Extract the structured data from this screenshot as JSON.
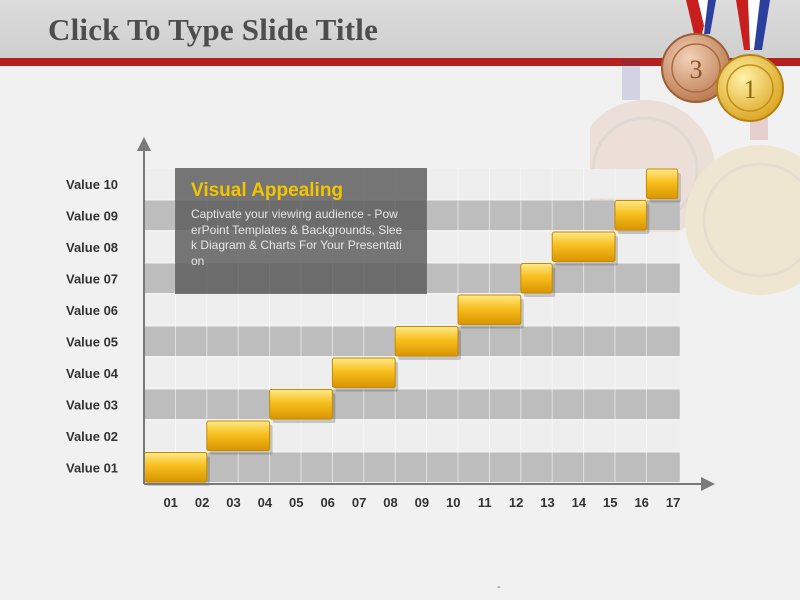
{
  "slide": {
    "title": "Click To Type Slide Title",
    "footnote": "-"
  },
  "textbox": {
    "title": "Visual Appealing",
    "body": "Captivate your viewing audience - PowerPoint Templates & Backgrounds, Sleek Diagram & Charts For Your Presentation"
  },
  "medals": [
    {
      "label": "3",
      "color": "#c8865a"
    },
    {
      "label": "1",
      "color": "#e1b43a"
    }
  ],
  "colors": {
    "accent": "#b3201e",
    "bar": "#f2b21a",
    "band": "#bdbdbd",
    "textbox_title": "#f4c400"
  },
  "chart_data": {
    "type": "bar",
    "orientation": "horizontal-gantt",
    "categories": [
      "Value 01",
      "Value 02",
      "Value 03",
      "Value 04",
      "Value 05",
      "Value 06",
      "Value 07",
      "Value 08",
      "Value 09",
      "Value 10"
    ],
    "x_ticks": [
      "01",
      "02",
      "03",
      "04",
      "05",
      "06",
      "07",
      "08",
      "09",
      "10",
      "11",
      "12",
      "13",
      "14",
      "15",
      "16",
      "17"
    ],
    "tasks": [
      {
        "category": "Value 01",
        "start": 1,
        "end": 3
      },
      {
        "category": "Value 02",
        "start": 3,
        "end": 5
      },
      {
        "category": "Value 03",
        "start": 5,
        "end": 7
      },
      {
        "category": "Value 04",
        "start": 7,
        "end": 9
      },
      {
        "category": "Value 05",
        "start": 9,
        "end": 11
      },
      {
        "category": "Value 06",
        "start": 11,
        "end": 13
      },
      {
        "category": "Value 07",
        "start": 13,
        "end": 14
      },
      {
        "category": "Value 08",
        "start": 14,
        "end": 16
      },
      {
        "category": "Value 09",
        "start": 16,
        "end": 17
      },
      {
        "category": "Value 10",
        "start": 17,
        "end": 18
      }
    ],
    "xlim": [
      1,
      18
    ],
    "grid": true,
    "title": "",
    "xlabel": "",
    "ylabel": ""
  }
}
